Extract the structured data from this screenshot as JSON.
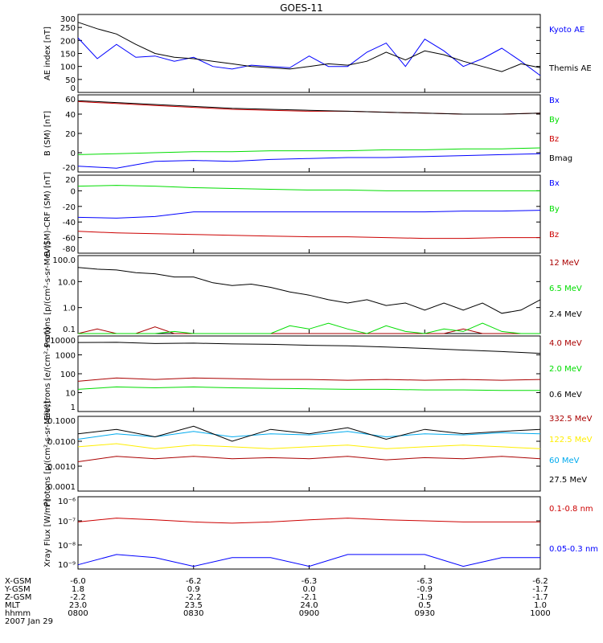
{
  "title": "GOES-11",
  "colors": {
    "black": "#000000",
    "blue": "#0000ff",
    "green": "#00dd00",
    "red": "#cc0000",
    "cyan": "#00aaee",
    "yellow": "#ffee00",
    "darkred": "#aa0000"
  },
  "footer": {
    "row_labels": [
      "X-GSM",
      "Y-GSM",
      "Z-GSM",
      "MLT",
      "hhmm",
      "2007 Jan 29"
    ],
    "columns": [
      [
        "-6.0",
        "1.8",
        "-2.2",
        "23.0",
        "0800"
      ],
      [
        "-6.2",
        "0.9",
        "-2.2",
        "23.5",
        "0830"
      ],
      [
        "-6.3",
        "0.0",
        "-2.1",
        "24.0",
        "0900"
      ],
      [
        "-6.3",
        "-0.9",
        "-1.9",
        "0.5",
        "0930"
      ],
      [
        "-6.2",
        "-1.7",
        "-1.7",
        "1.0",
        "1000"
      ]
    ]
  },
  "chart_data": [
    {
      "type": "line",
      "ylabel": "AE index [nT]",
      "ylim": [
        0,
        300
      ],
      "yticks": [
        "0",
        "50",
        "100",
        "150",
        "200",
        "250",
        "300"
      ],
      "x": [
        0,
        5,
        10,
        15,
        20,
        25,
        30,
        35,
        40,
        45,
        50,
        55,
        60,
        65,
        70,
        75,
        80,
        85,
        90,
        95,
        100,
        105,
        110,
        115,
        120
      ],
      "series": [
        {
          "name": "Kyoto AE",
          "color": "blue",
          "values": [
            210,
            130,
            185,
            135,
            140,
            120,
            135,
            100,
            90,
            105,
            100,
            95,
            140,
            100,
            100,
            155,
            190,
            100,
            205,
            160,
            100,
            130,
            170,
            120,
            65
          ]
        },
        {
          "name": "Themis AE",
          "color": "black",
          "values": [
            270,
            245,
            225,
            185,
            150,
            135,
            130,
            120,
            110,
            100,
            95,
            90,
            100,
            110,
            105,
            120,
            155,
            125,
            160,
            145,
            120,
            100,
            80,
            110,
            95
          ]
        }
      ]
    },
    {
      "type": "line",
      "ylabel": "B (SM) [nT]",
      "ylim": [
        -20,
        60
      ],
      "yticks": [
        "-20",
        "0",
        "20",
        "40",
        "60"
      ],
      "x": [
        0,
        10,
        20,
        30,
        40,
        50,
        60,
        70,
        80,
        90,
        100,
        110,
        120
      ],
      "series": [
        {
          "name": "Bx",
          "color": "blue",
          "values": [
            -14,
            -16,
            -9,
            -8,
            -9,
            -7,
            -6,
            -5,
            -5,
            -4,
            -3,
            -2,
            -1
          ]
        },
        {
          "name": "By",
          "color": "green",
          "values": [
            -2,
            -1,
            0,
            1,
            1,
            2,
            2,
            2,
            3,
            3,
            4,
            4,
            5
          ]
        },
        {
          "name": "Bz",
          "color": "red",
          "values": [
            53,
            51,
            49,
            47,
            45,
            44,
            43,
            43,
            42,
            41,
            40,
            40,
            41
          ]
        },
        {
          "name": "Bmag",
          "color": "black",
          "values": [
            54,
            52,
            50,
            48,
            46,
            45,
            44,
            43,
            42,
            41,
            40,
            40,
            41
          ]
        }
      ]
    },
    {
      "type": "line",
      "ylabel": "B (SM)-CRF (SM) [nT]",
      "ylim": [
        -80,
        20
      ],
      "yticks": [
        "-80",
        "-60",
        "-40",
        "-20",
        "0",
        "20"
      ],
      "x": [
        0,
        10,
        20,
        30,
        40,
        50,
        60,
        70,
        80,
        90,
        100,
        110,
        120
      ],
      "series": [
        {
          "name": "Bx",
          "color": "blue",
          "values": [
            -34,
            -35,
            -33,
            -27,
            -27,
            -27,
            -27,
            -27,
            -27,
            -27,
            -26,
            -26,
            -25
          ]
        },
        {
          "name": "By",
          "color": "green",
          "values": [
            6,
            7,
            6,
            4,
            3,
            2,
            1,
            1,
            0,
            0,
            0,
            0,
            0
          ]
        },
        {
          "name": "Bz",
          "color": "red",
          "values": [
            -52,
            -54,
            -55,
            -56,
            -57,
            -58,
            -59,
            -59,
            -60,
            -61,
            -61,
            -60,
            -60
          ]
        }
      ]
    },
    {
      "type": "line",
      "log": true,
      "ylabel": "Protons [p/(cm²-s-sr-MeV)]",
      "ylim": [
        0.1,
        100
      ],
      "yticks": [
        "0.1",
        "1.0",
        "10.0",
        "100.0"
      ],
      "x": [
        0,
        5,
        10,
        15,
        20,
        25,
        30,
        35,
        40,
        45,
        50,
        55,
        60,
        65,
        70,
        75,
        80,
        85,
        90,
        95,
        100,
        105,
        110,
        115,
        120
      ],
      "series": [
        {
          "name": "12 MeV",
          "color": "darkred",
          "values": [
            0.1,
            0.15,
            0.1,
            0.1,
            0.18,
            0.1,
            0.1,
            0.1,
            0.1,
            0.1,
            0.1,
            0.1,
            0.1,
            0.1,
            0.1,
            0.1,
            0.1,
            0.1,
            0.1,
            0.1,
            0.15,
            0.1,
            0.1,
            0.1,
            0.1
          ]
        },
        {
          "name": "6.5 MeV",
          "color": "green",
          "values": [
            0.1,
            0.1,
            0.1,
            0.1,
            0.1,
            0.12,
            0.1,
            0.1,
            0.1,
            0.1,
            0.1,
            0.2,
            0.15,
            0.25,
            0.15,
            0.1,
            0.2,
            0.12,
            0.1,
            0.15,
            0.12,
            0.25,
            0.12,
            0.1,
            0.1
          ]
        },
        {
          "name": "2.4 MeV",
          "color": "black",
          "values": [
            35,
            30,
            28,
            22,
            20,
            15,
            15,
            9,
            7,
            8,
            6,
            4,
            3,
            2,
            1.5,
            2,
            1.2,
            1.5,
            0.8,
            1.5,
            0.8,
            1.5,
            0.6,
            0.8,
            2
          ]
        }
      ]
    },
    {
      "type": "line",
      "log": true,
      "ylabel": "Electrons [e/(cm²-s-sr)]",
      "ylim": [
        1,
        10000
      ],
      "yticks": [
        "1",
        "10",
        "100",
        "1000",
        "10000"
      ],
      "x": [
        0,
        10,
        20,
        30,
        40,
        50,
        60,
        70,
        80,
        90,
        100,
        110,
        120
      ],
      "series": [
        {
          "name": "4.0 MeV",
          "color": "darkred",
          "values": [
            40,
            60,
            50,
            60,
            55,
            50,
            50,
            45,
            50,
            45,
            50,
            45,
            50
          ]
        },
        {
          "name": "2.0 MeV",
          "color": "green",
          "values": [
            15,
            20,
            18,
            20,
            18,
            17,
            16,
            15,
            15,
            14,
            14,
            13,
            13
          ]
        },
        {
          "name": "0.6 MeV",
          "color": "black",
          "values": [
            4500,
            4600,
            4000,
            4200,
            3800,
            3600,
            3200,
            3000,
            2600,
            2200,
            1800,
            1500,
            1200
          ]
        }
      ]
    },
    {
      "type": "line",
      "log": true,
      "ylabel": "Protons [p/(cm²-s-sr-MeV)]",
      "ylim": [
        0.0001,
        0.1
      ],
      "yticks": [
        "0.0001",
        "0.0010",
        "0.0100",
        "0.1000"
      ],
      "x": [
        0,
        10,
        20,
        30,
        40,
        50,
        60,
        70,
        80,
        90,
        100,
        110,
        120
      ],
      "series": [
        {
          "name": "332.5 MeV",
          "color": "darkred",
          "values": [
            0.0015,
            0.0025,
            0.002,
            0.0025,
            0.002,
            0.0022,
            0.002,
            0.0025,
            0.0018,
            0.0022,
            0.002,
            0.0025,
            0.002
          ]
        },
        {
          "name": "122.5 MeV",
          "color": "yellow",
          "values": [
            0.006,
            0.008,
            0.005,
            0.007,
            0.006,
            0.005,
            0.006,
            0.007,
            0.005,
            0.006,
            0.007,
            0.006,
            0.005
          ]
        },
        {
          "name": "60 MeV",
          "color": "cyan",
          "values": [
            0.012,
            0.02,
            0.015,
            0.025,
            0.015,
            0.02,
            0.018,
            0.025,
            0.015,
            0.02,
            0.018,
            0.022,
            0.02
          ]
        },
        {
          "name": "27.5 MeV",
          "color": "black",
          "values": [
            0.02,
            0.03,
            0.015,
            0.04,
            0.01,
            0.03,
            0.02,
            0.035,
            0.012,
            0.03,
            0.02,
            0.025,
            0.03
          ]
        }
      ]
    },
    {
      "type": "line",
      "log": true,
      "ylabel": "Xray Flux [W/m²]",
      "ylim": [
        1e-09,
        1e-06
      ],
      "yticks": [
        "10⁻⁹",
        "10⁻⁸",
        "10⁻⁷",
        "10⁻⁶"
      ],
      "x": [
        0,
        10,
        20,
        30,
        40,
        50,
        60,
        70,
        80,
        90,
        100,
        110,
        120
      ],
      "series": [
        {
          "name": "0.1-0.8 nm",
          "color": "red",
          "values": [
            9e-08,
            1.3e-07,
            1.1e-07,
            9e-08,
            8e-08,
            9e-08,
            1.1e-07,
            1.3e-07,
            1.1e-07,
            1e-07,
            9e-08,
            9e-08,
            9e-08
          ]
        },
        {
          "name": "0.05-0.3 nm",
          "color": "blue",
          "values": [
            1.5e-09,
            4e-09,
            3e-09,
            1.3e-09,
            3e-09,
            3e-09,
            1.3e-09,
            4e-09,
            4e-09,
            4e-09,
            1.3e-09,
            3e-09,
            3e-09
          ]
        }
      ]
    }
  ]
}
